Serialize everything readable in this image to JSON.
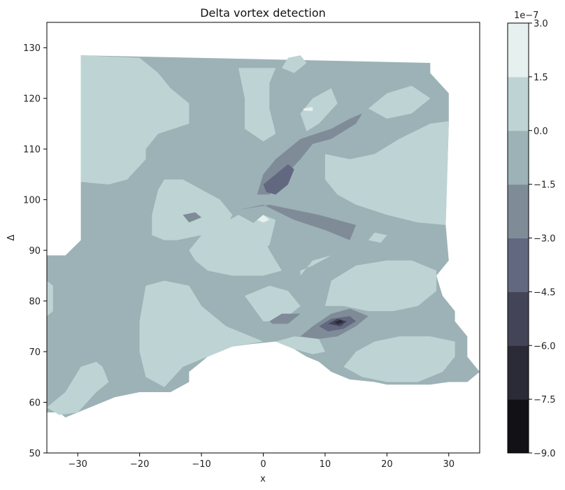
{
  "chart_data": {
    "type": "contour",
    "title": "Delta vortex detection",
    "xlabel": "x",
    "ylabel": "Δ",
    "xlim": [
      -35,
      35
    ],
    "ylim": [
      50,
      135
    ],
    "xticks": [
      -30,
      -20,
      -10,
      0,
      10,
      20,
      30
    ],
    "yticks": [
      50,
      60,
      70,
      80,
      90,
      100,
      110,
      120,
      130
    ],
    "colormap": "bone",
    "colorbar": {
      "offset_label": "1e−7",
      "levels": [
        -9.0,
        -7.5,
        -6.0,
        -4.5,
        -3.0,
        -1.5,
        0.0,
        1.5,
        3.0
      ],
      "tick_labels": [
        "−9.0",
        "−7.5",
        "−6.0",
        "−4.5",
        "−3.0",
        "−1.5",
        "0.0",
        "1.5",
        "3.0"
      ],
      "colors": [
        "#121216",
        "#2b2b38",
        "#444458",
        "#626880",
        "#7f8c98",
        "#9cb2b6",
        "#bed4d4",
        "#e6f0ee"
      ]
    },
    "regions": [
      {
        "name": "domain",
        "level": -1.5,
        "points": [
          [
            -29.5,
            128.5
          ],
          [
            27,
            127
          ],
          [
            27,
            125
          ],
          [
            30,
            121
          ],
          [
            30,
            115
          ],
          [
            29.5,
            95
          ],
          [
            30,
            88
          ],
          [
            28,
            85
          ],
          [
            29,
            81
          ],
          [
            31,
            78
          ],
          [
            31,
            76
          ],
          [
            33,
            73
          ],
          [
            33,
            69
          ],
          [
            35,
            66
          ],
          [
            33,
            64
          ],
          [
            30,
            64
          ],
          [
            27,
            63.5
          ],
          [
            20,
            63.5
          ],
          [
            18,
            64
          ],
          [
            14,
            64.5
          ],
          [
            11,
            66
          ],
          [
            9,
            68
          ],
          [
            7,
            69
          ],
          [
            5,
            70.5
          ],
          [
            2,
            72
          ],
          [
            -2,
            71.5
          ],
          [
            -5,
            71
          ],
          [
            -9,
            69
          ],
          [
            -10,
            68
          ],
          [
            -12,
            66
          ],
          [
            -12,
            64
          ],
          [
            -15,
            62
          ],
          [
            -20,
            62
          ],
          [
            -24,
            61
          ],
          [
            -28,
            59
          ],
          [
            -30,
            58
          ],
          [
            -32,
            57
          ],
          [
            -33,
            58
          ],
          [
            -35,
            58
          ],
          [
            -35,
            89
          ],
          [
            -32,
            89
          ],
          [
            -29.5,
            92
          ]
        ]
      },
      {
        "name": "upper-left-plateau",
        "level": 0.0,
        "points": [
          [
            -29.5,
            128.5
          ],
          [
            -20,
            128
          ],
          [
            -17,
            125
          ],
          [
            -15,
            122
          ],
          [
            -12,
            119
          ],
          [
            -12,
            115
          ],
          [
            -17,
            113
          ],
          [
            -19,
            110
          ],
          [
            -19,
            108
          ],
          [
            -22,
            104
          ],
          [
            -25,
            103
          ],
          [
            -29.5,
            103.5
          ]
        ]
      },
      {
        "name": "top-center-patch",
        "level": 0.0,
        "points": [
          [
            -4,
            126
          ],
          [
            -3,
            120
          ],
          [
            -3,
            114
          ],
          [
            0,
            111.5
          ],
          [
            2,
            113
          ],
          [
            1,
            118
          ],
          [
            1,
            123
          ],
          [
            2,
            126
          ]
        ]
      },
      {
        "name": "top-blob",
        "level": 0.0,
        "points": [
          [
            3,
            126
          ],
          [
            4,
            128
          ],
          [
            6,
            128.5
          ],
          [
            7,
            127
          ],
          [
            5,
            125
          ]
        ]
      },
      {
        "name": "upper-right-patch",
        "level": 0.0,
        "points": [
          [
            6,
            117
          ],
          [
            8,
            120
          ],
          [
            11,
            122
          ],
          [
            12,
            119
          ],
          [
            9,
            115
          ],
          [
            7,
            113.5
          ]
        ]
      },
      {
        "name": "far-upper-right-blob",
        "level": 0.0,
        "points": [
          [
            17,
            118
          ],
          [
            20,
            121
          ],
          [
            24,
            122.5
          ],
          [
            27,
            120
          ],
          [
            24,
            117
          ],
          [
            20,
            116
          ]
        ]
      },
      {
        "name": "right-plateau",
        "level": 0.0,
        "points": [
          [
            10,
            109
          ],
          [
            14,
            108
          ],
          [
            18,
            109
          ],
          [
            22,
            112
          ],
          [
            27,
            115
          ],
          [
            30,
            115.5
          ],
          [
            29.5,
            95
          ],
          [
            25,
            95.5
          ],
          [
            20,
            97
          ],
          [
            15,
            99
          ],
          [
            12,
            101
          ],
          [
            10,
            104
          ]
        ]
      },
      {
        "name": "left-mid-patch",
        "level": 0.0,
        "points": [
          [
            -18,
            97
          ],
          [
            -18,
            93
          ],
          [
            -16,
            92
          ],
          [
            -14,
            92
          ],
          [
            -10,
            93
          ],
          [
            -6,
            94.5
          ],
          [
            -5,
            97
          ],
          [
            -7,
            100
          ],
          [
            -10,
            102
          ],
          [
            -13,
            104
          ],
          [
            -16,
            104
          ],
          [
            -17,
            102
          ]
        ]
      },
      {
        "name": "center-mid-patch",
        "level": 0.0,
        "points": [
          [
            -12,
            90
          ],
          [
            -11,
            88
          ],
          [
            -9,
            86
          ],
          [
            -5,
            85
          ],
          [
            0,
            85
          ],
          [
            3,
            86
          ],
          [
            1,
            90
          ],
          [
            -1,
            95
          ],
          [
            -4,
            97
          ],
          [
            -7,
            95
          ],
          [
            -10,
            93
          ]
        ]
      },
      {
        "name": "mid-blob",
        "level": 0.0,
        "points": [
          [
            -3,
            89
          ],
          [
            -2,
            95
          ],
          [
            0,
            97
          ],
          [
            2,
            96
          ],
          [
            1,
            91
          ]
        ]
      },
      {
        "name": "right-mid-blob",
        "level": 0.0,
        "points": [
          [
            6,
            85
          ],
          [
            8,
            88
          ],
          [
            11,
            89
          ],
          [
            8,
            87
          ],
          [
            6,
            86
          ]
        ]
      },
      {
        "name": "right-small-blob",
        "level": 0.0,
        "points": [
          [
            17,
            92
          ],
          [
            18,
            93.5
          ],
          [
            20,
            93
          ],
          [
            19,
            91.5
          ]
        ]
      },
      {
        "name": "lower-right-mid-plateau",
        "level": 0.0,
        "points": [
          [
            10,
            79
          ],
          [
            11,
            84
          ],
          [
            15,
            87
          ],
          [
            20,
            88
          ],
          [
            24,
            88
          ],
          [
            28,
            86
          ],
          [
            28,
            82
          ],
          [
            25,
            79
          ],
          [
            21,
            78
          ],
          [
            17,
            78
          ],
          [
            13,
            79
          ]
        ]
      },
      {
        "name": "lower-left-plateau",
        "level": 0.0,
        "points": [
          [
            -19,
            83
          ],
          [
            -16,
            84
          ],
          [
            -12,
            83
          ],
          [
            -10,
            79
          ],
          [
            -6,
            75
          ],
          [
            -2,
            73
          ],
          [
            0,
            72
          ],
          [
            -5,
            71
          ],
          [
            -9,
            69
          ],
          [
            -13,
            67
          ],
          [
            -16,
            63
          ],
          [
            -19,
            65
          ],
          [
            -20,
            70
          ],
          [
            -20,
            76
          ]
        ]
      },
      {
        "name": "center-low-patch",
        "level": 0.0,
        "points": [
          [
            -3,
            81
          ],
          [
            1,
            83
          ],
          [
            4,
            82
          ],
          [
            6,
            79
          ],
          [
            3,
            76
          ],
          [
            0,
            76
          ]
        ]
      },
      {
        "name": "bottom-center-patch",
        "level": 0.0,
        "points": [
          [
            2,
            72
          ],
          [
            5,
            73
          ],
          [
            9,
            72.5
          ],
          [
            10,
            70
          ],
          [
            8,
            69.5
          ],
          [
            5,
            70.5
          ]
        ]
      },
      {
        "name": "lower-right-plateau",
        "level": 0.0,
        "points": [
          [
            13,
            67
          ],
          [
            15,
            70
          ],
          [
            18,
            72
          ],
          [
            22,
            73
          ],
          [
            27,
            73
          ],
          [
            31,
            72
          ],
          [
            31,
            69
          ],
          [
            29,
            66
          ],
          [
            25,
            64
          ],
          [
            20,
            64
          ],
          [
            16,
            65
          ]
        ]
      },
      {
        "name": "bottom-left-plateau",
        "level": 0.0,
        "points": [
          [
            -35,
            59
          ],
          [
            -32,
            62
          ],
          [
            -29.5,
            67
          ],
          [
            -27,
            68
          ],
          [
            -26,
            67
          ],
          [
            -25,
            64
          ],
          [
            -27,
            62
          ],
          [
            -30,
            58
          ],
          [
            -33,
            57.5
          ]
        ]
      },
      {
        "name": "left-edge-patch",
        "level": 0.0,
        "points": [
          [
            -35,
            84
          ],
          [
            -34,
            83
          ],
          [
            -34,
            78
          ],
          [
            -35,
            77
          ]
        ]
      },
      {
        "name": "upper-left-vortex",
        "level": -3.0,
        "points": [
          [
            -1,
            101
          ],
          [
            0,
            105
          ],
          [
            2,
            108
          ],
          [
            4,
            110
          ],
          [
            6,
            112
          ],
          [
            11,
            114
          ],
          [
            14,
            116
          ],
          [
            16,
            117
          ],
          [
            15,
            115
          ],
          [
            11,
            112
          ],
          [
            8,
            111
          ],
          [
            6,
            108
          ],
          [
            3,
            104
          ],
          [
            1,
            101
          ]
        ]
      },
      {
        "name": "center-band",
        "level": -3.0,
        "points": [
          [
            -4,
            98
          ],
          [
            0,
            99
          ],
          [
            5,
            96
          ],
          [
            10,
            94
          ],
          [
            14,
            92
          ],
          [
            15,
            95
          ],
          [
            12,
            96
          ],
          [
            9,
            97
          ],
          [
            5,
            98
          ],
          [
            1,
            99
          ]
        ]
      },
      {
        "name": "left-small-band",
        "level": -3.0,
        "points": [
          [
            -13,
            97
          ],
          [
            -11,
            97.5
          ],
          [
            -10,
            96.5
          ],
          [
            -12,
            95.5
          ]
        ]
      },
      {
        "name": "lower-vortex-outer",
        "level": -3.0,
        "points": [
          [
            6,
            73
          ],
          [
            8,
            75
          ],
          [
            11,
            77.5
          ],
          [
            14,
            78.5
          ],
          [
            17,
            77
          ],
          [
            15,
            75
          ],
          [
            12,
            73
          ],
          [
            9,
            72.5
          ]
        ]
      },
      {
        "name": "left-mini-vortex",
        "level": -3.0,
        "points": [
          [
            1,
            76
          ],
          [
            3,
            77.5
          ],
          [
            6,
            77.5
          ],
          [
            4,
            75.5
          ],
          [
            1.5,
            75.5
          ]
        ]
      },
      {
        "name": "upper-vortex-core",
        "level": -4.5,
        "points": [
          [
            0,
            103
          ],
          [
            2,
            105
          ],
          [
            4,
            107
          ],
          [
            5,
            106
          ],
          [
            4,
            103
          ],
          [
            2,
            101
          ],
          [
            0.5,
            101.5
          ]
        ]
      },
      {
        "name": "lower-vortex-mid",
        "level": -4.5,
        "points": [
          [
            9,
            75
          ],
          [
            11,
            76.5
          ],
          [
            14,
            77
          ],
          [
            15,
            76
          ],
          [
            13,
            74.5
          ],
          [
            10.5,
            74
          ]
        ]
      },
      {
        "name": "lower-vortex-inner",
        "level": -6.0,
        "points": [
          [
            10.5,
            75.5
          ],
          [
            12,
            76.5
          ],
          [
            13.5,
            76
          ],
          [
            12.5,
            75
          ]
        ]
      },
      {
        "name": "lower-vortex-core",
        "level": -7.5,
        "points": [
          [
            11.5,
            75.8
          ],
          [
            12.5,
            76.3
          ],
          [
            13,
            75.8
          ],
          [
            12,
            75.4
          ]
        ]
      },
      {
        "name": "white-blob-1",
        "level": 1.5,
        "points": [
          [
            -1,
            96
          ],
          [
            0,
            97
          ],
          [
            1,
            96
          ],
          [
            0,
            95.5
          ]
        ]
      },
      {
        "name": "white-blob-2",
        "level": 1.5,
        "points": [
          [
            6.5,
            118
          ],
          [
            8,
            118.3
          ],
          [
            8,
            117.5
          ],
          [
            6.5,
            117.6
          ]
        ]
      }
    ]
  }
}
